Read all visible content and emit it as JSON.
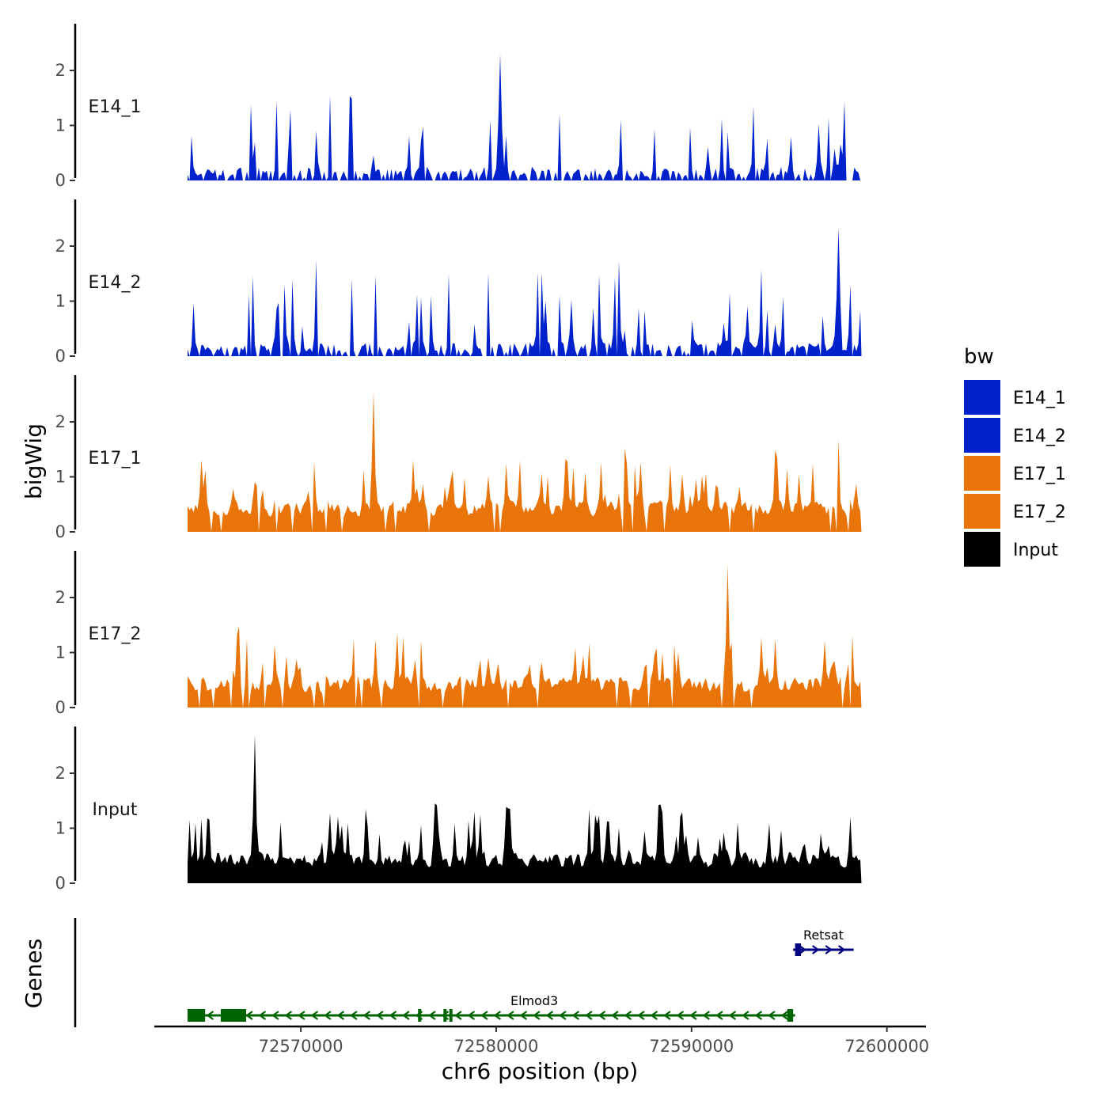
{
  "chart_data": {
    "type": "area",
    "y_axis_title": "bigWig",
    "x_axis_title": "chr6 position (bp)",
    "xlim": [
      72562500,
      72602000
    ],
    "x_ticks": [
      72570000,
      72580000,
      72590000,
      72600000
    ],
    "x_tick_labels": [
      "72570000",
      "72580000",
      "72590000",
      "72600000"
    ],
    "ylim": [
      0,
      2.8
    ],
    "y_ticks": [
      0,
      1,
      2
    ],
    "y_tick_labels": [
      "0",
      "1",
      "2"
    ],
    "tracks": [
      {
        "name": "E14_1",
        "label": "E14_1",
        "color": "#0022CC",
        "data_start": 72564200,
        "data_end": 72598700,
        "max": 2.3,
        "peak_at": 72580200,
        "seed": 11,
        "density": 0.45
      },
      {
        "name": "E14_2",
        "label": "E14_2",
        "color": "#0022CC",
        "data_start": 72564200,
        "data_end": 72598700,
        "max": 2.35,
        "peak_at": 72597500,
        "seed": 23,
        "density": 0.55
      },
      {
        "name": "E17_1",
        "label": "E17_1",
        "color": "#E8740A",
        "data_start": 72564200,
        "data_end": 72598700,
        "max": 2.55,
        "peak_at": 72573700,
        "seed": 37,
        "density": 0.9
      },
      {
        "name": "E17_2",
        "label": "E17_2",
        "color": "#E8740A",
        "data_start": 72564200,
        "data_end": 72598700,
        "max": 2.6,
        "peak_at": 72591900,
        "seed": 51,
        "density": 0.9
      },
      {
        "name": "Input",
        "label": "Input",
        "color": "#000000",
        "data_start": 72564200,
        "data_end": 72598700,
        "max": 2.7,
        "peak_at": 72567600,
        "seed": 67,
        "density": 1.0
      }
    ],
    "genes_track_title": "Genes",
    "genes": [
      {
        "name": "Elmod3",
        "start": 72564200,
        "end": 72595300,
        "strand": "-",
        "color": "#006400",
        "row": 1,
        "exons": [
          [
            72564200,
            72565100
          ],
          [
            72565900,
            72567200
          ],
          [
            72576000,
            72576100
          ],
          [
            72577300,
            72577400
          ],
          [
            72577600,
            72577700
          ],
          [
            72594900,
            72595200
          ]
        ]
      },
      {
        "name": "Retsat",
        "start": 72595200,
        "end": 72598300,
        "strand": "+",
        "color": "#000080",
        "row": 0,
        "exons": [
          [
            72595300,
            72595600
          ]
        ]
      }
    ],
    "legend": {
      "title": "bw",
      "entries": [
        {
          "label": "E14_1",
          "color": "#0022CC"
        },
        {
          "label": "E14_2",
          "color": "#0022CC"
        },
        {
          "label": "E17_1",
          "color": "#E8740A"
        },
        {
          "label": "E17_2",
          "color": "#E8740A"
        },
        {
          "label": "Input",
          "color": "#000000"
        }
      ]
    }
  }
}
